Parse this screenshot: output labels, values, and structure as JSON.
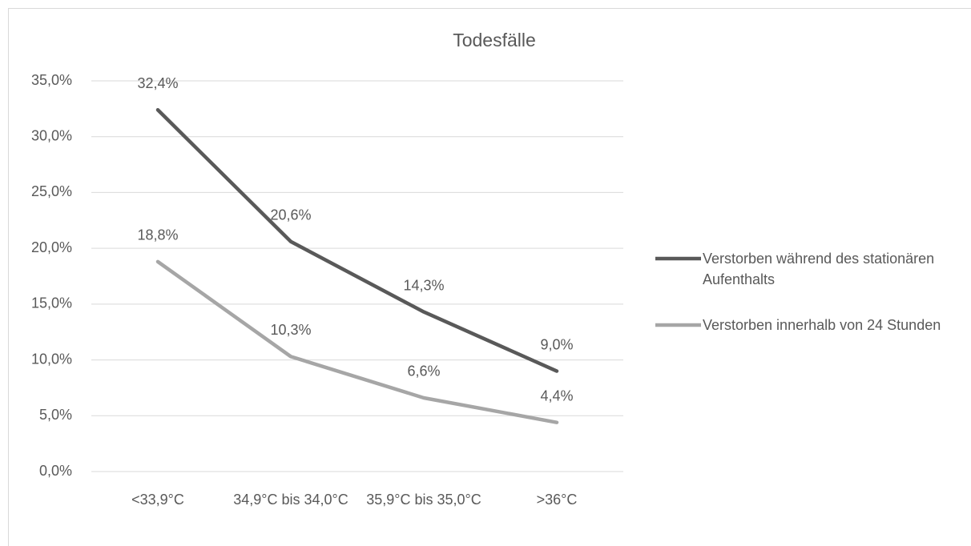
{
  "chart_data": {
    "type": "line",
    "title": "Todesfälle",
    "categories": [
      "<33,9°C",
      "34,9°C bis 34,0°C",
      "35,9°C bis 35,0°C",
      ">36°C"
    ],
    "series": [
      {
        "name": "Verstorben während des stationären Aufenthalts",
        "color": "#595959",
        "values": [
          32.4,
          20.6,
          14.3,
          9.0
        ],
        "value_labels": [
          "32,4%",
          "20,6%",
          "14,3%",
          "9,0%"
        ]
      },
      {
        "name": "Verstorben innerhalb von 24 Stunden",
        "color": "#a6a6a6",
        "values": [
          18.8,
          10.3,
          6.6,
          4.4
        ],
        "value_labels": [
          "18,8%",
          "10,3%",
          "6,6%",
          "4,4%"
        ]
      }
    ],
    "ylim": [
      0,
      35
    ],
    "yticks": [
      {
        "value": 0,
        "label": "0,0%"
      },
      {
        "value": 5,
        "label": "5,0%"
      },
      {
        "value": 10,
        "label": "10,0%"
      },
      {
        "value": 15,
        "label": "15,0%"
      },
      {
        "value": 20,
        "label": "20,0%"
      },
      {
        "value": 25,
        "label": "25,0%"
      },
      {
        "value": 30,
        "label": "30,0%"
      },
      {
        "value": 35,
        "label": "35,0%"
      }
    ],
    "grid": true,
    "legend": "right"
  }
}
